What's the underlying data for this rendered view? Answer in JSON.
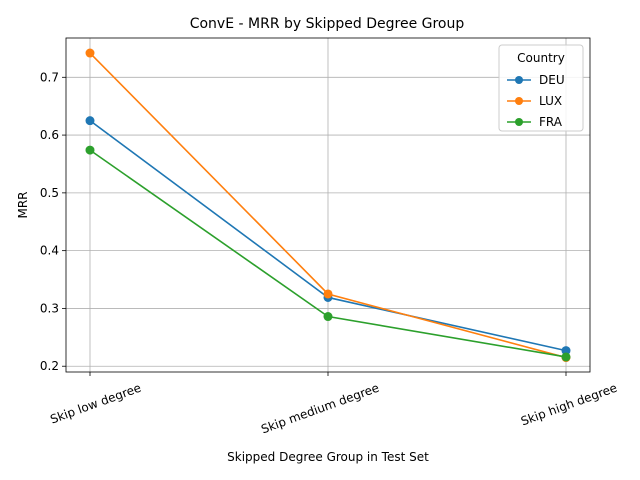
{
  "chart_data": {
    "type": "line",
    "title": "ConvE - MRR by Skipped Degree Group",
    "xlabel": "Skipped Degree Group in Test Set",
    "ylabel": "MRR",
    "categories": [
      "Skip low degree",
      "Skip medium degree",
      "Skip high degree"
    ],
    "ylim": [
      0.19,
      0.768
    ],
    "yticks": [
      0.2,
      0.3,
      0.4,
      0.5,
      0.6,
      0.7
    ],
    "ytick_labels": [
      "0.2",
      "0.3",
      "0.4",
      "0.5",
      "0.6",
      "0.7"
    ],
    "grid": true,
    "legend": {
      "title": "Country",
      "position": "top-right"
    },
    "series": [
      {
        "name": "DEU",
        "color": "#1f77b4",
        "values": [
          0.625,
          0.319,
          0.227
        ]
      },
      {
        "name": "LUX",
        "color": "#ff7f0e",
        "values": [
          0.742,
          0.325,
          0.215
        ]
      },
      {
        "name": "FRA",
        "color": "#2ca02c",
        "values": [
          0.574,
          0.286,
          0.216
        ]
      }
    ]
  }
}
